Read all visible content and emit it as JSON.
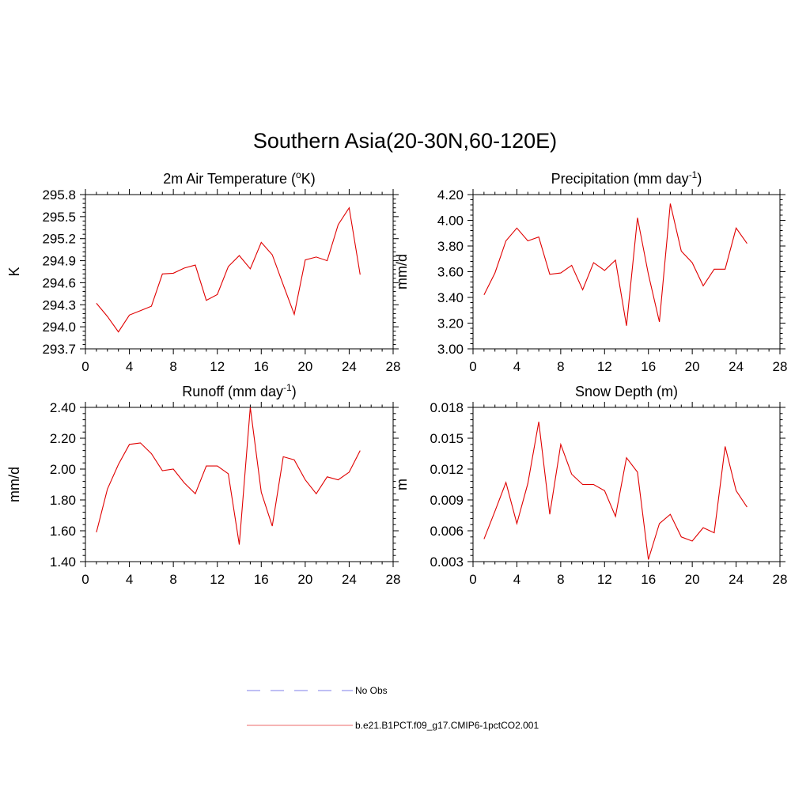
{
  "title": "Southern Asia(20-30N,60-120E)",
  "colors": {
    "model_line": "#e00000",
    "obs_line": "#9999ee",
    "legend_model": "#f08888"
  },
  "legend": [
    {
      "label": "No Obs",
      "style": "dashed",
      "color": "#9999ee"
    },
    {
      "label": "b.e21.B1PCT.f09_g17.CMIP6-1pctCO2.001",
      "style": "solid",
      "color": "#f08888"
    }
  ],
  "chart_data": [
    {
      "type": "line",
      "title_main": "2m Air Temperature (",
      "title_sup": "o",
      "title_tail": "K)",
      "ylabel": "K",
      "xlim": [
        0,
        28
      ],
      "x_ticks": [
        "0",
        "4",
        "8",
        "12",
        "16",
        "20",
        "24",
        "28"
      ],
      "ylim": [
        293.7,
        295.8
      ],
      "y_ticks": [
        "293.7",
        "294.0",
        "294.3",
        "294.6",
        "294.9",
        "295.2",
        "295.5",
        "295.8"
      ],
      "x": [
        1,
        2,
        3,
        4,
        5,
        6,
        7,
        8,
        9,
        10,
        11,
        12,
        13,
        14,
        15,
        16,
        17,
        18,
        19,
        20,
        21,
        22,
        23,
        24,
        25
      ],
      "series": [
        {
          "values": [
            294.32,
            294.14,
            293.93,
            294.16,
            294.22,
            294.28,
            294.72,
            294.73,
            294.8,
            294.84,
            294.36,
            294.44,
            294.82,
            294.97,
            294.79,
            295.15,
            294.98,
            294.57,
            294.17,
            294.91,
            294.95,
            294.9,
            295.39,
            295.62,
            294.71
          ]
        }
      ]
    },
    {
      "type": "line",
      "title_main": "Precipitation (mm day",
      "title_sup": "-1",
      "title_tail": ")",
      "ylabel": "mm/d",
      "xlim": [
        0,
        28
      ],
      "x_ticks": [
        "0",
        "4",
        "8",
        "12",
        "16",
        "20",
        "24",
        "28"
      ],
      "ylim": [
        3.0,
        4.2
      ],
      "y_ticks": [
        "3.00",
        "3.20",
        "3.40",
        "3.60",
        "3.80",
        "4.00",
        "4.20"
      ],
      "x": [
        1,
        2,
        3,
        4,
        5,
        6,
        7,
        8,
        9,
        10,
        11,
        12,
        13,
        14,
        15,
        16,
        17,
        18,
        19,
        20,
        21,
        22,
        23,
        24,
        25
      ],
      "series": [
        {
          "values": [
            3.42,
            3.59,
            3.84,
            3.94,
            3.84,
            3.87,
            3.58,
            3.59,
            3.65,
            3.46,
            3.67,
            3.61,
            3.69,
            3.18,
            4.02,
            3.58,
            3.21,
            4.13,
            3.76,
            3.67,
            3.49,
            3.62,
            3.62,
            3.94,
            3.82
          ]
        }
      ]
    },
    {
      "type": "line",
      "title_main": "Runoff (mm day",
      "title_sup": "-1",
      "title_tail": ")",
      "ylabel": "mm/d",
      "xlim": [
        0,
        28
      ],
      "x_ticks": [
        "0",
        "4",
        "8",
        "12",
        "16",
        "20",
        "24",
        "28"
      ],
      "ylim": [
        1.4,
        2.4
      ],
      "y_ticks": [
        "1.40",
        "1.60",
        "1.80",
        "2.00",
        "2.20",
        "2.40"
      ],
      "x": [
        1,
        2,
        3,
        4,
        5,
        6,
        7,
        8,
        9,
        10,
        11,
        12,
        13,
        14,
        15,
        16,
        17,
        18,
        19,
        20,
        21,
        22,
        23,
        24,
        25
      ],
      "series": [
        {
          "values": [
            1.59,
            1.87,
            2.03,
            2.16,
            2.17,
            2.1,
            1.99,
            2.0,
            1.91,
            1.84,
            2.02,
            2.02,
            1.97,
            1.51,
            2.4,
            1.85,
            1.63,
            2.08,
            2.06,
            1.93,
            1.84,
            1.95,
            1.93,
            1.98,
            2.12
          ]
        }
      ]
    },
    {
      "type": "line",
      "title_main": "Snow Depth (m)",
      "title_sup": "",
      "title_tail": "",
      "ylabel": "m",
      "xlim": [
        0,
        28
      ],
      "x_ticks": [
        "0",
        "4",
        "8",
        "12",
        "16",
        "20",
        "24",
        "28"
      ],
      "ylim": [
        0.003,
        0.018
      ],
      "y_ticks": [
        "0.003",
        "0.006",
        "0.009",
        "0.012",
        "0.015",
        "0.018"
      ],
      "x": [
        1,
        2,
        3,
        4,
        5,
        6,
        7,
        8,
        9,
        10,
        11,
        12,
        13,
        14,
        15,
        16,
        17,
        18,
        19,
        20,
        21,
        22,
        23,
        24,
        25
      ],
      "series": [
        {
          "values": [
            0.0052,
            0.0079,
            0.0107,
            0.0067,
            0.0106,
            0.0166,
            0.0076,
            0.0144,
            0.0115,
            0.0105,
            0.0105,
            0.0099,
            0.0074,
            0.0131,
            0.0117,
            0.0032,
            0.0067,
            0.0076,
            0.0054,
            0.005,
            0.0063,
            0.0058,
            0.0142,
            0.0099,
            0.0083
          ]
        }
      ]
    }
  ]
}
